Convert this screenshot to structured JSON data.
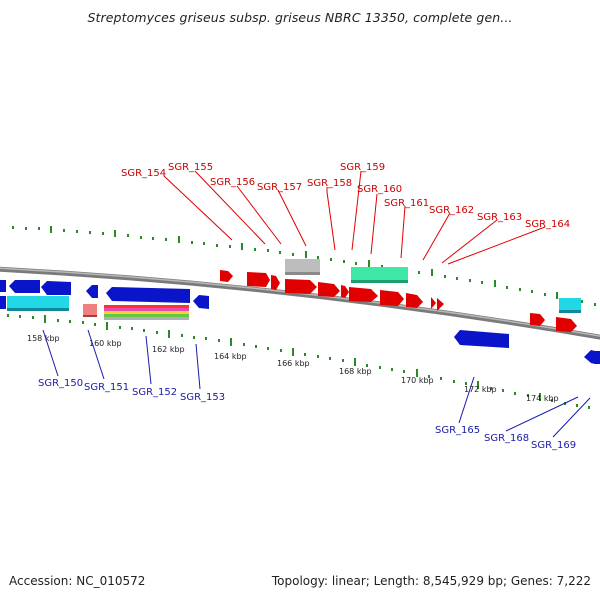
{
  "title": "Streptomyces griseus subsp. griseus NBRC 13350, complete gen...",
  "footer": {
    "accession": "Accession: NC_010572",
    "summary": "Topology: linear; Length: 8,545,929 bp; Genes: 7,222"
  },
  "scale_labels": [
    "158 kbp",
    "160 kbp",
    "162 kbp",
    "164 kbp",
    "166 kbp",
    "168 kbp",
    "170 kbp",
    "172 kbp",
    "174 kbp"
  ],
  "genes_top": [
    "SGR_154",
    "SGR_155",
    "SGR_156",
    "SGR_157",
    "SGR_158",
    "SGR_159",
    "SGR_160",
    "SGR_161",
    "SGR_162",
    "SGR_163",
    "SGR_164"
  ],
  "genes_bottom": [
    "SGR_150",
    "SGR_151",
    "SGR_152",
    "SGR_153",
    "SGR_165",
    "SGR_168",
    "SGR_169"
  ],
  "colors": {
    "forward_gene": "#e00000",
    "reverse_gene": "#0a14c8",
    "rna_gene": "#40e8a8",
    "pseudo_gene": "#bdbdbd",
    "cyan_gene": "#22d8e6",
    "tick_major": "#2a8a2a",
    "backbone": "#8a8a8a"
  }
}
